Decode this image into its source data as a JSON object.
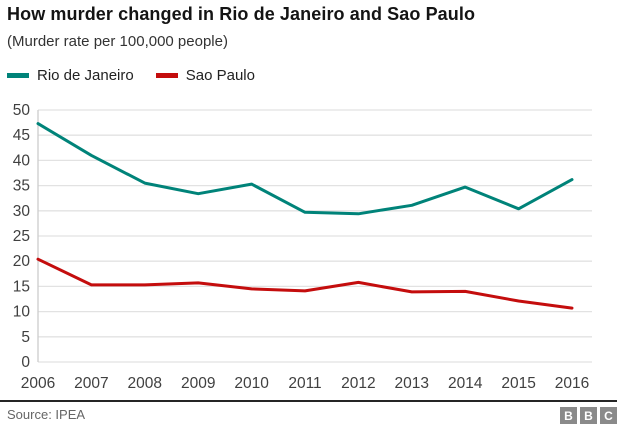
{
  "header": {
    "title": "How murder changed in Rio de Janeiro and Sao Paulo",
    "subtitle": "(Murder rate per 100,000 people)"
  },
  "legend": [
    {
      "label": "Rio de Janeiro",
      "color": "#008379"
    },
    {
      "label": "Sao Paulo",
      "color": "#c40d0d"
    }
  ],
  "chart_data": {
    "type": "line",
    "title": "How murder changed in Rio de Janeiro and Sao Paulo",
    "subtitle": "(Murder rate per 100,000 people)",
    "categories": [
      "2006",
      "2007",
      "2008",
      "2009",
      "2010",
      "2011",
      "2012",
      "2013",
      "2014",
      "2015",
      "2016"
    ],
    "series": [
      {
        "name": "Rio de Janeiro",
        "color": "#008379",
        "values": [
          47.3,
          41.0,
          35.5,
          33.4,
          35.3,
          29.7,
          29.4,
          31.1,
          34.7,
          30.4,
          36.2
        ]
      },
      {
        "name": "Sao Paulo",
        "color": "#c40d0d",
        "values": [
          20.4,
          15.3,
          15.3,
          15.7,
          14.5,
          14.1,
          15.8,
          13.9,
          14.0,
          12.1,
          10.7
        ]
      }
    ],
    "xlabel": "",
    "ylabel": "",
    "ylim": [
      0,
      50
    ],
    "yticks": [
      0,
      5,
      10,
      15,
      20,
      25,
      30,
      35,
      40,
      45,
      50
    ],
    "grid": true,
    "legend_position": "top",
    "grid_color": "#e2e2e2",
    "axis_color": "#cccccc",
    "tick_label_color": "#404040"
  },
  "footer": {
    "source": "Source: IPEA",
    "logo_letters": [
      "B",
      "B",
      "C"
    ]
  }
}
